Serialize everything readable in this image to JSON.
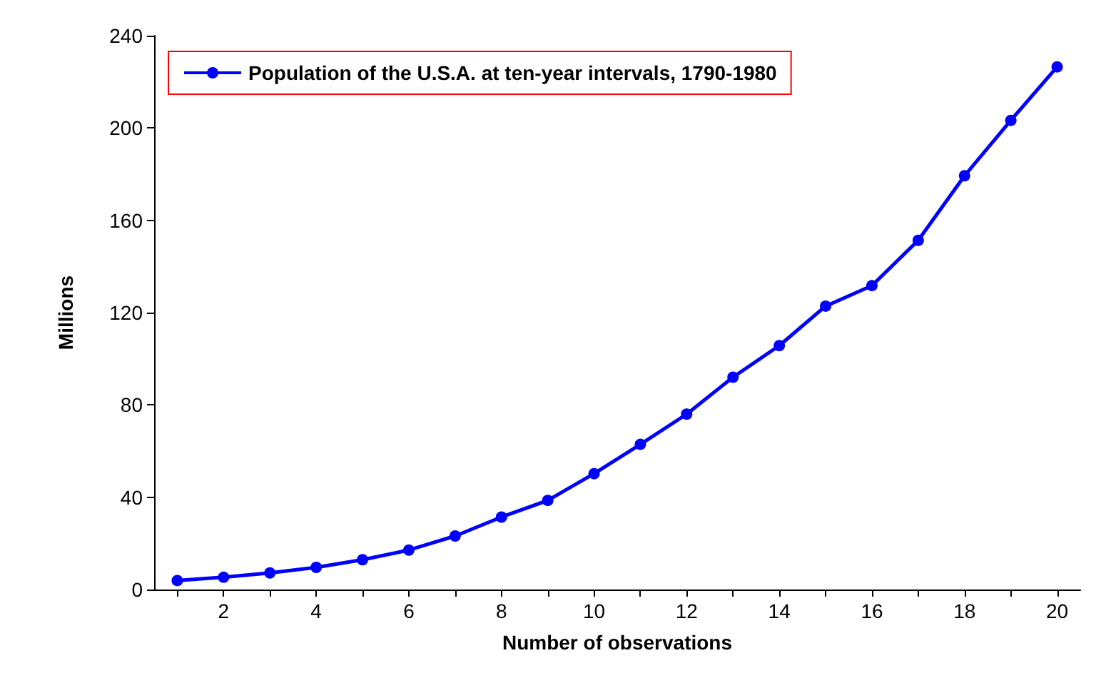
{
  "chart_data": {
    "type": "line",
    "xlabel": "Number of observations",
    "ylabel": "Millions",
    "x": [
      1,
      2,
      3,
      4,
      5,
      6,
      7,
      8,
      9,
      10,
      11,
      12,
      13,
      14,
      15,
      16,
      17,
      18,
      19,
      20
    ],
    "series": [
      {
        "name": "Population of the U.S.A. at ten-year intervals, 1790-1980",
        "color": "#0000ff",
        "values": [
          3.9,
          5.3,
          7.2,
          9.6,
          12.9,
          17.1,
          23.2,
          31.4,
          38.6,
          50.2,
          62.9,
          76.0,
          92.0,
          105.7,
          122.8,
          131.7,
          151.3,
          179.3,
          203.3,
          226.5
        ]
      }
    ],
    "xlim": [
      0.5,
      20.5
    ],
    "xticks": [
      {
        "value": 1,
        "label": null
      },
      2,
      {
        "value": 3,
        "label": null
      },
      4,
      {
        "value": 5,
        "label": null
      },
      6,
      {
        "value": 7,
        "label": null
      },
      8,
      {
        "value": 9,
        "label": null
      },
      10,
      {
        "value": 11,
        "label": null
      },
      12,
      {
        "value": 13,
        "label": null
      },
      14,
      {
        "value": 15,
        "label": null
      },
      16,
      {
        "value": 17,
        "label": null
      },
      18,
      {
        "value": 19,
        "label": null
      },
      20
    ],
    "ylim": [
      0,
      240
    ],
    "yticks": [
      0,
      40,
      80,
      120,
      160,
      200,
      240
    ],
    "grid": false,
    "legend": "top left",
    "marker": "circle",
    "line_style": "solid"
  }
}
